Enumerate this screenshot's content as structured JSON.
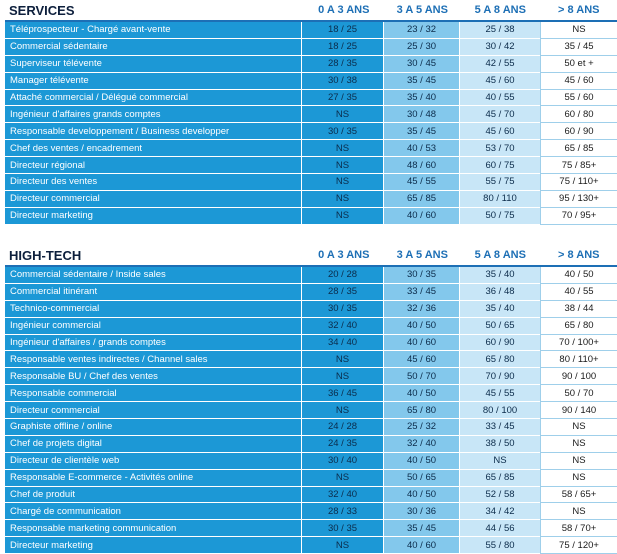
{
  "headers": [
    "0 A 3 ANS",
    "3 A 5 ANS",
    "5 A 8 ANS",
    "> 8 ANS"
  ],
  "services": {
    "title": "SERVICES",
    "rows": [
      [
        "Téléprospecteur - Chargé avant-vente",
        "18 / 25",
        "23 / 32",
        "25 / 38",
        "NS"
      ],
      [
        "Commercial sédentaire",
        "18 / 25",
        "25 / 30",
        "30 / 42",
        "35 / 45"
      ],
      [
        "Superviseur télévente",
        "28 / 35",
        "30 / 45",
        "42 / 55",
        "50 et +"
      ],
      [
        "Manager télévente",
        "30 / 38",
        "35 / 45",
        "45 / 60",
        "45 / 60"
      ],
      [
        "Attaché commercial / Délégué commercial",
        "27 / 35",
        "35 / 40",
        "40 / 55",
        "55 / 60"
      ],
      [
        "Ingénieur d'affaires grands comptes",
        "NS",
        "30 / 48",
        "45 / 70",
        "60 / 80"
      ],
      [
        "Responsable developpement / Business developper",
        "30 / 35",
        "35 / 45",
        "45 / 60",
        "60 / 90"
      ],
      [
        "Chef des ventes / encadrement",
        "NS",
        "40 / 53",
        "53 / 70",
        "65 / 85"
      ],
      [
        "Directeur régional",
        "NS",
        "48 / 60",
        "60 / 75",
        "75 / 85+"
      ],
      [
        "Directeur des ventes",
        "NS",
        "45 / 55",
        "55 / 75",
        "75 / 110+"
      ],
      [
        "Directeur commercial",
        "NS",
        "65 / 85",
        "80 / 110",
        "95 / 130+"
      ],
      [
        "Directeur marketing",
        "NS",
        "40 / 60",
        "50 / 75",
        "70 / 95+"
      ]
    ]
  },
  "hightech": {
    "title": "HIGH-TECH",
    "rows": [
      [
        "Commercial sédentaire / Inside sales",
        "20 / 28",
        "30 / 35",
        "35 / 40",
        "40 / 50"
      ],
      [
        "Commercial itinérant",
        "28 / 35",
        "33 / 45",
        "36 / 48",
        "40 / 55"
      ],
      [
        "Technico-commercial",
        "30 / 35",
        "32 / 36",
        "35 / 40",
        "38 / 44"
      ],
      [
        "Ingénieur commercial",
        "32 / 40",
        "40 / 50",
        "50 / 65",
        "65 / 80"
      ],
      [
        "Ingénieur d'affaires / grands comptes",
        "34 / 40",
        "40 / 60",
        "60 / 90",
        "70 / 100+"
      ],
      [
        "Responsable ventes indirectes / Channel sales",
        "NS",
        "45 / 60",
        "65 / 80",
        "80 / 110+"
      ],
      [
        "Responsable BU / Chef des ventes",
        "NS",
        "50 / 70",
        "70 / 90",
        "90 / 100"
      ],
      [
        "Responsable commercial",
        "36 / 45",
        "40 / 50",
        "45 / 55",
        "50 / 70"
      ],
      [
        "Directeur commercial",
        "NS",
        "65 / 80",
        "80 / 100",
        "90 / 140"
      ],
      [
        "Graphiste offline / online",
        "24 / 28",
        "25 / 32",
        "33 / 45",
        "NS"
      ],
      [
        "Chef de projets digital",
        "24 / 35",
        "32 / 40",
        "38 / 50",
        "NS"
      ],
      [
        "Directeur de clientèle web",
        "30 / 40",
        "40 / 50",
        "NS",
        "NS"
      ],
      [
        "Responsable E-commerce - Activités online",
        "NS",
        "50 / 65",
        "65 / 85",
        "NS"
      ],
      [
        "Chef de produit",
        "32 / 40",
        "40 / 50",
        "52 / 58",
        "58 / 65+"
      ],
      [
        "Chargé de communication",
        "28 / 33",
        "30 / 36",
        "34 / 42",
        "NS"
      ],
      [
        "Responsable marketing communication",
        "30 / 35",
        "35 / 45",
        "44 / 56",
        "58 / 70+"
      ],
      [
        "Directeur marketing",
        "NS",
        "40 / 60",
        "55 / 80",
        "75 / 120+"
      ]
    ]
  }
}
